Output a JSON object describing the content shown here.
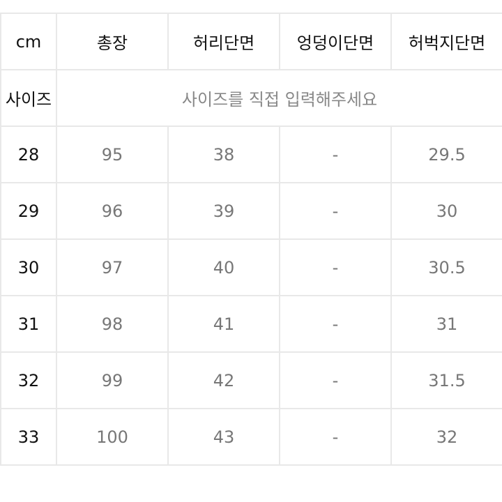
{
  "table": {
    "header": [
      "cm",
      "총장",
      "허리단면",
      "엉덩이단면",
      "허벅지단면"
    ],
    "note_row": {
      "label": "사이즈",
      "note": "사이즈를 직접 입력해주세요"
    },
    "rows": [
      [
        "28",
        "95",
        "38",
        "-",
        "29.5"
      ],
      [
        "29",
        "96",
        "39",
        "-",
        "30"
      ],
      [
        "30",
        "97",
        "40",
        "-",
        "30.5"
      ],
      [
        "31",
        "98",
        "41",
        "-",
        "31"
      ],
      [
        "32",
        "99",
        "42",
        "-",
        "31.5"
      ],
      [
        "33",
        "100",
        "43",
        "-",
        "32"
      ]
    ]
  }
}
